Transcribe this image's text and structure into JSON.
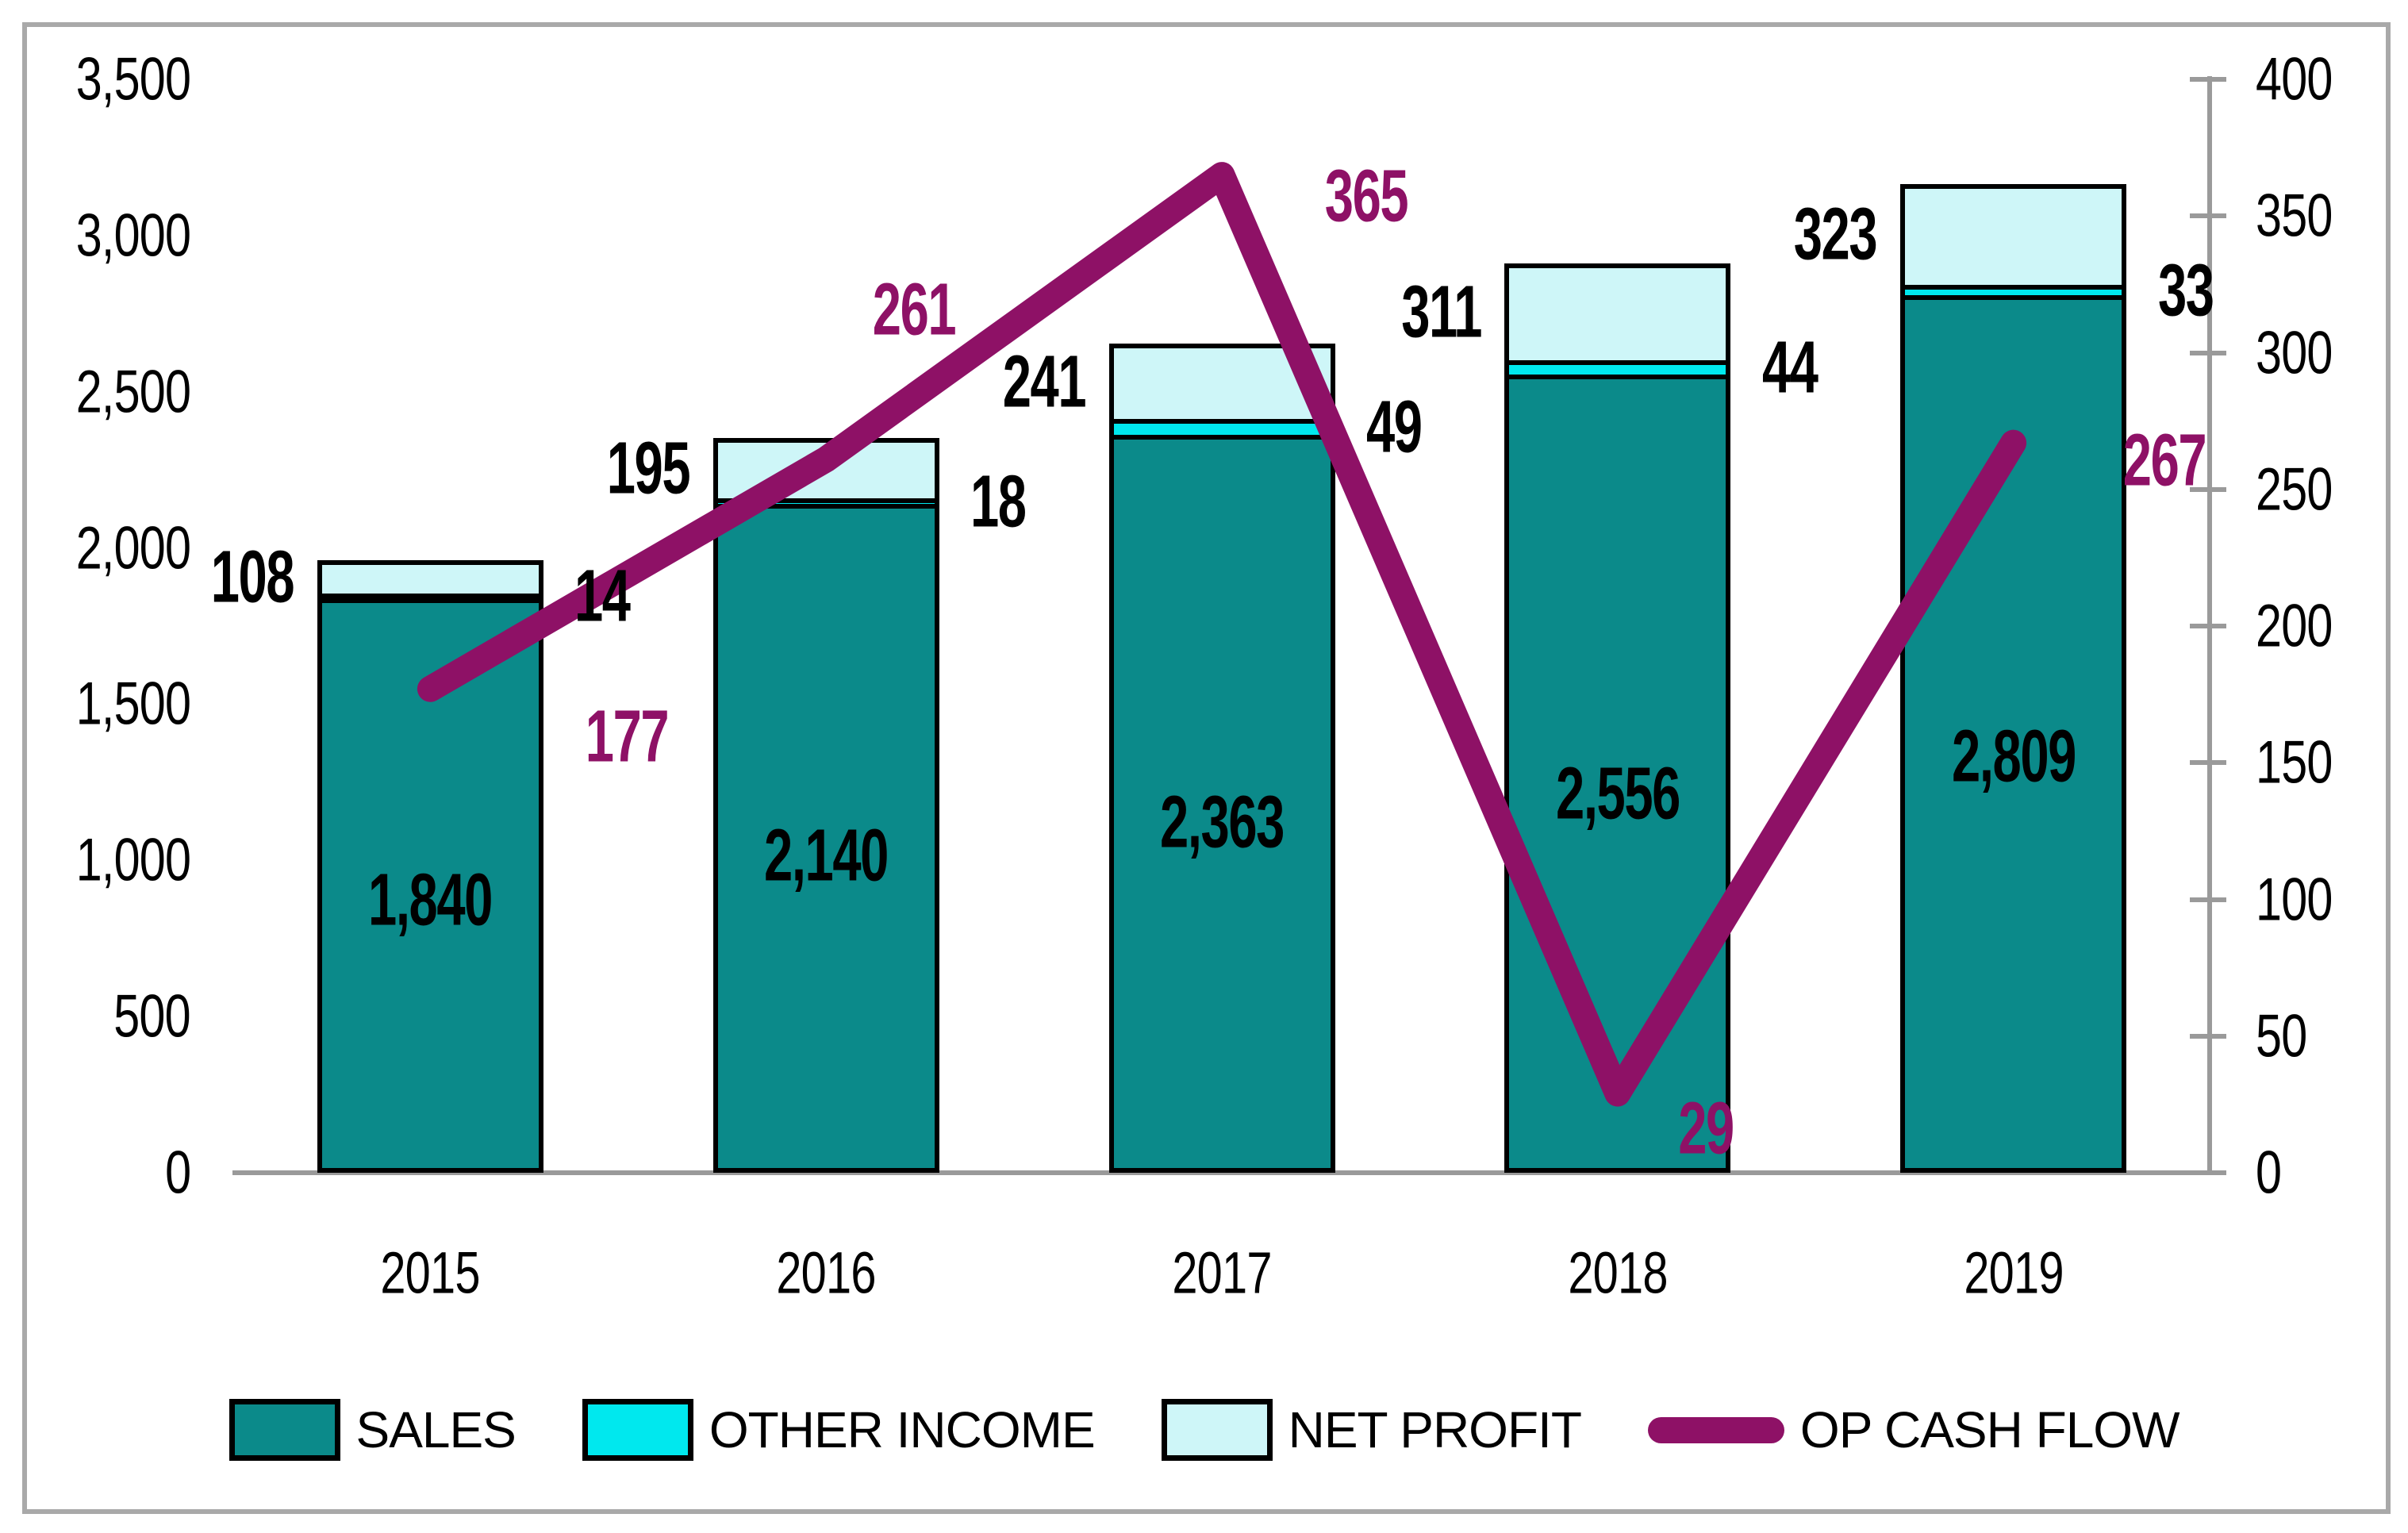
{
  "chart_data": {
    "type": "combo-stacked-bar-line",
    "title": "",
    "categories": [
      "2015",
      "2016",
      "2017",
      "2018",
      "2019"
    ],
    "series": [
      {
        "name": "SALES",
        "type": "bar",
        "axis": "left",
        "color": "#0b8a8a",
        "values": [
          1840,
          2140,
          2363,
          2556,
          2809
        ],
        "labels": [
          "1,840",
          "2,140",
          "2,363",
          "2,556",
          "2,809"
        ]
      },
      {
        "name": "OTHER INCOME",
        "type": "bar",
        "axis": "left",
        "color": "#00e8ee",
        "values": [
          14,
          18,
          49,
          44,
          33
        ],
        "labels": [
          "14",
          "18",
          "49",
          "44",
          "33"
        ]
      },
      {
        "name": "NET PROFIT",
        "type": "bar",
        "axis": "left",
        "color": "#cef6f8",
        "values": [
          108,
          195,
          241,
          311,
          323
        ],
        "labels": [
          "108",
          "195",
          "241",
          "311",
          "323"
        ]
      },
      {
        "name": "OP CASH FLOW",
        "type": "line",
        "axis": "right",
        "color": "#8e1166",
        "values": [
          177,
          261,
          365,
          29,
          267
        ],
        "labels": [
          "177",
          "261",
          "365",
          "29",
          "267"
        ]
      }
    ],
    "left_axis": {
      "min": 0,
      "max": 3500,
      "step": 500,
      "ticks": [
        "0",
        "500",
        "1,000",
        "1,500",
        "2,000",
        "2,500",
        "3,000",
        "3,500"
      ]
    },
    "right_axis": {
      "min": 0,
      "max": 400,
      "step": 50,
      "ticks": [
        "0",
        "50",
        "100",
        "150",
        "200",
        "250",
        "300",
        "350",
        "400"
      ]
    },
    "grid": false,
    "legend_position": "bottom",
    "legend": [
      "SALES",
      "OTHER INCOME",
      "NET PROFIT",
      "OP CASH FLOW"
    ]
  },
  "colors": {
    "sales": "#0b8a8a",
    "other_income": "#00e8ee",
    "net_profit": "#cef6f8",
    "op_cash_flow": "#8e1166",
    "axis_gray": "#9a9a9a",
    "frame_gray": "#a9a9a9",
    "label_black": "#000000"
  }
}
